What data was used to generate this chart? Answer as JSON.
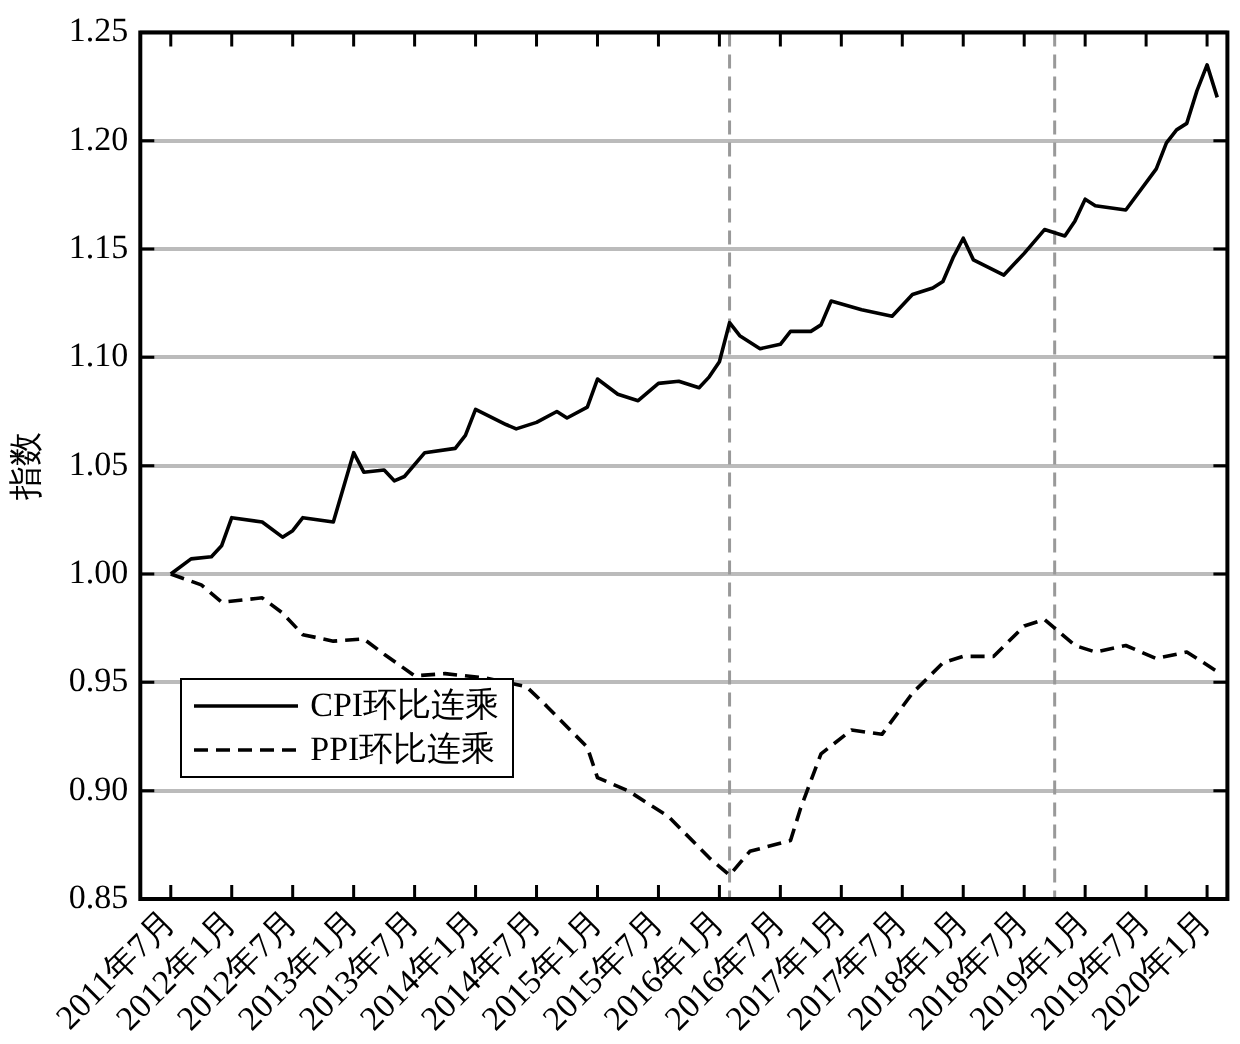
{
  "chart_data": {
    "type": "line",
    "ylabel": "指数",
    "xlim": [
      "2011-04",
      "2020-03"
    ],
    "xticks": [
      {
        "value": "2011-07",
        "label": "2011年7月"
      },
      {
        "value": "2012-01",
        "label": "2012年1月"
      },
      {
        "value": "2012-07",
        "label": "2012年7月"
      },
      {
        "value": "2013-01",
        "label": "2013年1月"
      },
      {
        "value": "2013-07",
        "label": "2013年7月"
      },
      {
        "value": "2014-01",
        "label": "2014年1月"
      },
      {
        "value": "2014-07",
        "label": "2014年7月"
      },
      {
        "value": "2015-01",
        "label": "2015年1月"
      },
      {
        "value": "2015-07",
        "label": "2015年7月"
      },
      {
        "value": "2016-01",
        "label": "2016年1月"
      },
      {
        "value": "2016-07",
        "label": "2016年7月"
      },
      {
        "value": "2017-01",
        "label": "2017年1月"
      },
      {
        "value": "2017-07",
        "label": "2017年7月"
      },
      {
        "value": "2018-01",
        "label": "2018年1月"
      },
      {
        "value": "2018-07",
        "label": "2018年7月"
      },
      {
        "value": "2019-01",
        "label": "2019年1月"
      },
      {
        "value": "2019-07",
        "label": "2019年7月"
      },
      {
        "value": "2020-01",
        "label": "2020年1月"
      }
    ],
    "ylim": [
      0.85,
      1.25
    ],
    "yticks": [
      0.85,
      {
        "value": 0.9,
        "label": "0.90"
      },
      0.95,
      {
        "value": 1.0,
        "label": "1.00"
      },
      1.05,
      {
        "value": 1.1,
        "label": "1.10"
      },
      1.15,
      {
        "value": 1.2,
        "label": "1.20"
      },
      1.25
    ],
    "grid": "y",
    "legend": "bottom left",
    "marker": "none",
    "ref_lines": [
      {
        "axis": "x",
        "value": "2016-02",
        "color": "#999999",
        "line_style": "dashed"
      },
      {
        "axis": "x",
        "value": "2018-10",
        "color": "#999999",
        "line_style": "dashed"
      }
    ],
    "series": [
      {
        "name": "CPI环比连乘",
        "color": "#000000",
        "line_style": "solid",
        "x": [
          "2011-07",
          "2011-09",
          "2011-11",
          "2011-12",
          "2012-01",
          "2012-04",
          "2012-06",
          "2012-07",
          "2012-08",
          "2012-11",
          "2013-01",
          "2013-02",
          "2013-04",
          "2013-05",
          "2013-06",
          "2013-08",
          "2013-11",
          "2013-12",
          "2014-01",
          "2014-04",
          "2014-05",
          "2014-07",
          "2014-09",
          "2014-10",
          "2014-12",
          "2015-01",
          "2015-03",
          "2015-05",
          "2015-07",
          "2015-09",
          "2015-11",
          "2015-12",
          "2016-01",
          "2016-02",
          "2016-03",
          "2016-05",
          "2016-07",
          "2016-08",
          "2016-10",
          "2016-11",
          "2016-12",
          "2017-03",
          "2017-06",
          "2017-08",
          "2017-10",
          "2017-11",
          "2017-12",
          "2018-01",
          "2018-02",
          "2018-05",
          "2018-07",
          "2018-09",
          "2018-11",
          "2018-12",
          "2019-01",
          "2019-02",
          "2019-05",
          "2019-08",
          "2019-09",
          "2019-10",
          "2019-11",
          "2019-12",
          "2020-01",
          "2020-02"
        ],
        "values": [
          1.0,
          1.007,
          1.008,
          1.013,
          1.026,
          1.024,
          1.017,
          1.02,
          1.026,
          1.024,
          1.056,
          1.047,
          1.048,
          1.043,
          1.045,
          1.056,
          1.058,
          1.064,
          1.076,
          1.069,
          1.067,
          1.07,
          1.075,
          1.072,
          1.077,
          1.09,
          1.083,
          1.08,
          1.088,
          1.089,
          1.086,
          1.091,
          1.098,
          1.116,
          1.11,
          1.104,
          1.106,
          1.112,
          1.112,
          1.115,
          1.126,
          1.122,
          1.119,
          1.129,
          1.132,
          1.135,
          1.146,
          1.155,
          1.145,
          1.138,
          1.148,
          1.159,
          1.156,
          1.163,
          1.173,
          1.17,
          1.168,
          1.187,
          1.199,
          1.205,
          1.208,
          1.223,
          1.235,
          1.22
        ]
      },
      {
        "name": "PPI环比连乘",
        "color": "#000000",
        "line_style": "dashed",
        "x": [
          "2011-07",
          "2011-10",
          "2011-12",
          "2012-04",
          "2012-06",
          "2012-08",
          "2012-11",
          "2013-02",
          "2013-04",
          "2013-07",
          "2013-10",
          "2014-02",
          "2014-06",
          "2014-08",
          "2014-12",
          "2015-01",
          "2015-04",
          "2015-08",
          "2015-12",
          "2016-02",
          "2016-04",
          "2016-08",
          "2016-09",
          "2016-11",
          "2017-02",
          "2017-05",
          "2017-08",
          "2017-11",
          "2018-01",
          "2018-04",
          "2018-07",
          "2018-09",
          "2018-12",
          "2019-02",
          "2019-05",
          "2019-08",
          "2019-11",
          "2019-12",
          "2020-02"
        ],
        "values": [
          1.0,
          0.995,
          0.987,
          0.989,
          0.982,
          0.972,
          0.969,
          0.97,
          0.963,
          0.953,
          0.954,
          0.952,
          0.948,
          0.939,
          0.92,
          0.906,
          0.9,
          0.888,
          0.869,
          0.861,
          0.872,
          0.877,
          0.892,
          0.917,
          0.928,
          0.926,
          0.945,
          0.959,
          0.962,
          0.962,
          0.976,
          0.979,
          0.967,
          0.964,
          0.967,
          0.961,
          0.964,
          0.961,
          0.955
        ]
      }
    ]
  }
}
